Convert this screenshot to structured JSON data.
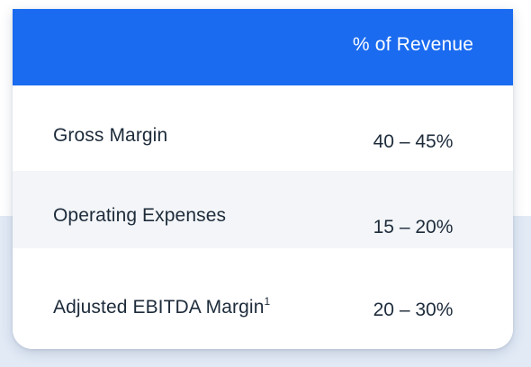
{
  "table": {
    "header": {
      "metric_column": "",
      "value_column": "% of Revenue"
    },
    "rows": [
      {
        "label": "Gross Margin",
        "footnote_marker": "",
        "value": "40 – 45%"
      },
      {
        "label": "Operating Expenses",
        "footnote_marker": "",
        "value": "15 – 20%"
      },
      {
        "label": "Adjusted EBITDA Margin",
        "footnote_marker": "1",
        "value": "20 – 30%"
      }
    ]
  },
  "colors": {
    "header_background": "#1a6bf0",
    "header_text": "#ffffff",
    "body_text": "#1d2b3a",
    "alternate_row_background": "#f3f5f8",
    "page_band": "#e2eaf6"
  }
}
